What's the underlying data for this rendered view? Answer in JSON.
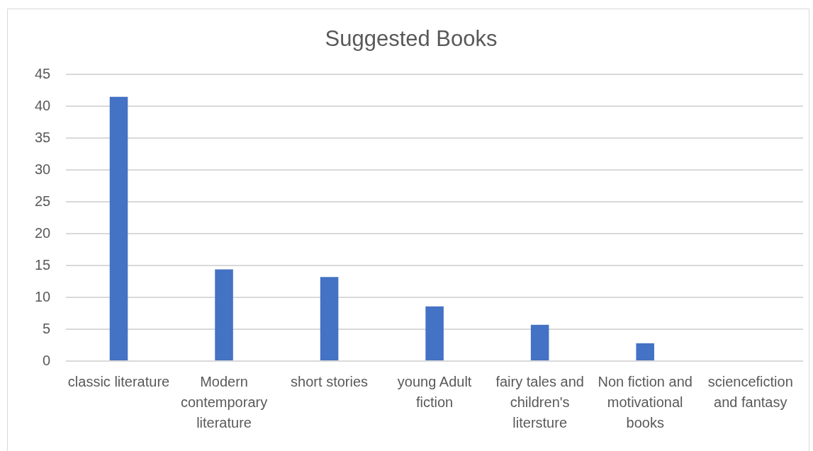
{
  "chart_data": {
    "type": "bar",
    "title": "Suggested Books",
    "categories": [
      "classic literature",
      "Modern contemporary literature",
      "short stories",
      "young Adult fiction",
      "fairy tales and children's litersture",
      "Non fiction and motivational books",
      "sciencefiction and fantasy"
    ],
    "values": [
      41.5,
      14.4,
      13.2,
      8.6,
      5.7,
      2.8,
      0
    ],
    "color": "#4472c4",
    "ylim": [
      0,
      45
    ],
    "yticks": [
      0,
      5,
      10,
      15,
      20,
      25,
      30,
      35,
      40,
      45
    ],
    "grid": "y"
  }
}
